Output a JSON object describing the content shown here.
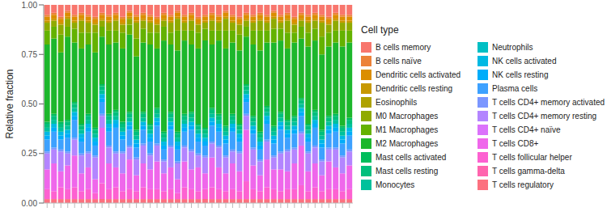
{
  "chart_data": {
    "type": "bar",
    "stacked": true,
    "legend": "right",
    "legend_title": "Cell type",
    "y_label": "Relative fraction",
    "ylim": [
      0,
      1
    ],
    "yticks": [
      {
        "value": 0,
        "label": "0.00"
      },
      {
        "value": 0.25,
        "label": "0.25"
      },
      {
        "value": 0.5,
        "label": "0.50"
      },
      {
        "value": 0.75,
        "label": "0.75"
      },
      {
        "value": 1,
        "label": "1.00"
      }
    ],
    "categories": [
      null,
      null,
      null,
      null,
      null,
      null,
      null,
      null,
      null,
      null,
      null,
      null,
      null,
      null,
      null,
      null,
      null,
      null,
      null,
      null,
      null,
      null,
      null,
      null,
      null,
      null,
      null,
      null,
      null,
      null,
      null,
      null,
      null,
      null,
      null,
      null,
      null,
      null,
      null,
      null,
      null,
      null,
      null,
      null,
      null
    ],
    "series": [
      {
        "name": "B cells memory",
        "color": "#F8766D",
        "values": [
          0.05,
          0.04,
          0.06,
          0.03,
          0.05,
          0.04,
          0.05,
          0.06,
          0.04,
          0.05,
          0.04,
          0.06,
          0.03,
          0.05,
          0.04,
          0.05,
          0.06,
          0.04,
          0.05,
          0.03,
          0.05,
          0.04,
          0.06,
          0.05,
          0.04,
          0.05,
          0.03,
          0.05,
          0.06,
          0.04,
          0.05,
          0.04,
          0.05,
          0.03,
          0.05,
          0.04,
          0.06,
          0.04,
          0.05,
          0.04,
          0.05,
          0.06,
          0.04,
          0.05,
          0.05
        ]
      },
      {
        "name": "B cells naïve",
        "color": "#EC8239",
        "values": [
          0.01,
          0.01,
          0.01,
          0.01,
          0.01,
          0.01,
          0.01,
          0.01,
          0.01,
          0.01,
          0.01,
          0.01,
          0.01,
          0.01,
          0.01,
          0.01,
          0.01,
          0.01,
          0.01,
          0.01,
          0.01,
          0.01,
          0.01,
          0.01,
          0.01,
          0.01,
          0.01,
          0.01,
          0.01,
          0.01,
          0.01,
          0.01,
          0.01,
          0.01,
          0.01,
          0.01,
          0.01,
          0.01,
          0.01,
          0.01,
          0.01,
          0.01,
          0.01,
          0.01,
          0.01
        ]
      },
      {
        "name": "Dendritic cells activated",
        "color": "#DB8E00",
        "values": [
          0.02,
          0.02,
          0.02,
          0.02,
          0.02,
          0.02,
          0.02,
          0.02,
          0.02,
          0.02,
          0.02,
          0.02,
          0.02,
          0.02,
          0.02,
          0.02,
          0.02,
          0.02,
          0.02,
          0.02,
          0.02,
          0.02,
          0.02,
          0.02,
          0.02,
          0.02,
          0.02,
          0.02,
          0.02,
          0.02,
          0.02,
          0.02,
          0.02,
          0.02,
          0.02,
          0.02,
          0.02,
          0.02,
          0.02,
          0.02,
          0.02,
          0.02,
          0.02,
          0.02,
          0.02
        ]
      },
      {
        "name": "Dendritic cells resting",
        "color": "#C79800",
        "values": [
          0.01,
          0.01,
          0.01,
          0.01,
          0.01,
          0.01,
          0.01,
          0.01,
          0.01,
          0.01,
          0.01,
          0.01,
          0.01,
          0.01,
          0.01,
          0.01,
          0.01,
          0.01,
          0.01,
          0.01,
          0.01,
          0.01,
          0.01,
          0.01,
          0.01,
          0.01,
          0.01,
          0.01,
          0.01,
          0.01,
          0.01,
          0.01,
          0.01,
          0.01,
          0.01,
          0.01,
          0.01,
          0.01,
          0.01,
          0.01,
          0.01,
          0.01,
          0.01,
          0.01,
          0.01
        ]
      },
      {
        "name": "Eosinophils",
        "color": "#AEA200",
        "values": [
          0,
          0,
          0,
          0,
          0,
          0,
          0,
          0,
          0,
          0,
          0,
          0,
          0,
          0,
          0,
          0,
          0,
          0,
          0,
          0,
          0,
          0,
          0,
          0,
          0,
          0,
          0,
          0,
          0,
          0,
          0,
          0,
          0,
          0,
          0,
          0,
          0,
          0,
          0,
          0,
          0,
          0,
          0,
          0,
          0
        ]
      },
      {
        "name": "M0 Macrophages",
        "color": "#8FAA00",
        "values": [
          0.04,
          0.03,
          0.05,
          0.04,
          0.03,
          0.06,
          0.05,
          0.04,
          0.03,
          0.04,
          0.05,
          0.04,
          0.03,
          0.08,
          0.04,
          0.05,
          0.04,
          0.03,
          0.05,
          0.06,
          0.04,
          0.05,
          0.04,
          0.03,
          0.05,
          0.04,
          0.06,
          0.04,
          0.05,
          0.03,
          0.04,
          0.05,
          0.04,
          0.05,
          0.03,
          0.06,
          0.04,
          0.03,
          0.05,
          0.04,
          0.07,
          0.04,
          0.05,
          0.04,
          0.04
        ]
      },
      {
        "name": "M1 Macrophages",
        "color": "#64B200",
        "values": [
          0.07,
          0.06,
          0.09,
          0.05,
          0.07,
          0.08,
          0.06,
          0.1,
          0.05,
          0.07,
          0.06,
          0.08,
          0.05,
          0.09,
          0.07,
          0.06,
          0.08,
          0.07,
          0.06,
          0.1,
          0.05,
          0.07,
          0.08,
          0.06,
          0.07,
          0.05,
          0.09,
          0.06,
          0.08,
          0.05,
          0.07,
          0.1,
          0.06,
          0.07,
          0.06,
          0.08,
          0.05,
          0.06,
          0.07,
          0.06,
          0.09,
          0.07,
          0.06,
          0.08,
          0.06
        ]
      },
      {
        "name": "M2 Macrophages",
        "color": "#1DB72C",
        "values": [
          0.39,
          0.38,
          0.35,
          0.42,
          0.3,
          0.38,
          0.35,
          0.38,
          0.24,
          0.35,
          0.34,
          0.37,
          0.39,
          0.37,
          0.35,
          0.4,
          0.3,
          0.46,
          0.34,
          0.41,
          0.37,
          0.34,
          0.38,
          0.44,
          0.32,
          0.37,
          0.39,
          0.36,
          0.37,
          0.24,
          0.36,
          0.41,
          0.32,
          0.42,
          0.36,
          0.36,
          0.37,
          0.3,
          0.39,
          0.35,
          0.38,
          0.35,
          0.36,
          0.4,
          0.38
        ]
      },
      {
        "name": "Mast cells activated",
        "color": "#00BD5C",
        "values": [
          0.01,
          0.01,
          0.01,
          0.01,
          0.01,
          0.01,
          0.01,
          0.01,
          0.01,
          0.01,
          0.01,
          0.01,
          0.01,
          0.01,
          0.01,
          0.01,
          0.01,
          0.01,
          0.01,
          0.01,
          0.01,
          0.01,
          0.01,
          0.01,
          0.01,
          0.01,
          0.01,
          0.01,
          0.01,
          0.01,
          0.01,
          0.01,
          0.01,
          0.01,
          0.01,
          0.01,
          0.01,
          0.01,
          0.01,
          0.01,
          0.01,
          0.01,
          0.01,
          0.01,
          0.01
        ]
      },
      {
        "name": "Mast cells resting",
        "color": "#00BF7D",
        "values": [
          0.02,
          0.02,
          0.02,
          0.02,
          0.02,
          0.02,
          0.02,
          0.02,
          0.02,
          0.02,
          0.02,
          0.02,
          0.02,
          0.02,
          0.02,
          0.02,
          0.02,
          0.02,
          0.02,
          0.02,
          0.02,
          0.02,
          0.02,
          0.02,
          0.02,
          0.02,
          0.02,
          0.02,
          0.02,
          0.02,
          0.02,
          0.02,
          0.02,
          0.02,
          0.02,
          0.02,
          0.02,
          0.02,
          0.02,
          0.02,
          0.02,
          0.02,
          0.02,
          0.02,
          0.02
        ]
      },
      {
        "name": "Monocytes",
        "color": "#00C19C",
        "values": [
          0.02,
          0.02,
          0.02,
          0.02,
          0.02,
          0.02,
          0.02,
          0.02,
          0.02,
          0.02,
          0.02,
          0.02,
          0.02,
          0.02,
          0.02,
          0.02,
          0.02,
          0.02,
          0.02,
          0.02,
          0.02,
          0.02,
          0.02,
          0.02,
          0.02,
          0.02,
          0.02,
          0.02,
          0.02,
          0.02,
          0.02,
          0.02,
          0.02,
          0.02,
          0.02,
          0.02,
          0.02,
          0.02,
          0.02,
          0.02,
          0.02,
          0.02,
          0.02,
          0.02,
          0.02
        ]
      },
      {
        "name": "Neutrophils",
        "color": "#00BFC4",
        "values": [
          0,
          0,
          0,
          0,
          0,
          0,
          0,
          0,
          0,
          0,
          0,
          0,
          0,
          0,
          0,
          0,
          0,
          0,
          0,
          0,
          0,
          0,
          0,
          0,
          0,
          0,
          0,
          0,
          0,
          0,
          0,
          0,
          0,
          0,
          0,
          0,
          0,
          0,
          0,
          0,
          0,
          0,
          0,
          0,
          0
        ]
      },
      {
        "name": "NK cells activated",
        "color": "#00B9E3",
        "values": [
          0.02,
          0.02,
          0.02,
          0.02,
          0.02,
          0.02,
          0.02,
          0.02,
          0.02,
          0.02,
          0.02,
          0.02,
          0.02,
          0.02,
          0.02,
          0.02,
          0.02,
          0.02,
          0.02,
          0.02,
          0.02,
          0.02,
          0.02,
          0.02,
          0.02,
          0.02,
          0.02,
          0.02,
          0.02,
          0.02,
          0.02,
          0.02,
          0.02,
          0.02,
          0.02,
          0.02,
          0.02,
          0.02,
          0.02,
          0.02,
          0.02,
          0.02,
          0.02,
          0.02,
          0.02
        ]
      },
      {
        "name": "NK cells resting",
        "color": "#00ADFA",
        "values": [
          0.02,
          0.02,
          0.02,
          0.02,
          0.02,
          0.02,
          0.02,
          0.02,
          0.02,
          0.02,
          0.02,
          0.02,
          0.02,
          0.02,
          0.02,
          0.02,
          0.02,
          0.02,
          0.02,
          0.02,
          0.02,
          0.02,
          0.02,
          0.02,
          0.02,
          0.02,
          0.02,
          0.02,
          0.02,
          0.02,
          0.02,
          0.02,
          0.02,
          0.02,
          0.02,
          0.02,
          0.02,
          0.02,
          0.02,
          0.02,
          0.02,
          0.02,
          0.02,
          0.02,
          0.02
        ]
      },
      {
        "name": "Plasma cells",
        "color": "#3DA1FF",
        "values": [
          0.06,
          0.08,
          0.05,
          0.07,
          0.09,
          0.06,
          0.1,
          0.05,
          0.06,
          0.07,
          0.12,
          0.06,
          0.08,
          0.05,
          0.07,
          0.06,
          0.09,
          0.05,
          0.08,
          0.06,
          0.07,
          0.1,
          0.06,
          0.05,
          0.08,
          0.07,
          0.06,
          0.09,
          0.05,
          0.06,
          0.07,
          0.05,
          0.08,
          0.06,
          0.11,
          0.06,
          0.07,
          0.08,
          0.05,
          0.09,
          0.06,
          0.07,
          0.08,
          0.06,
          0.07
        ]
      },
      {
        "name": "T cells CD4+ memory activated",
        "color": "#7B96FF",
        "values": [
          0.01,
          0.01,
          0.01,
          0.01,
          0.01,
          0.01,
          0.01,
          0.01,
          0.01,
          0.01,
          0.01,
          0.01,
          0.01,
          0.01,
          0.01,
          0.01,
          0.01,
          0.01,
          0.01,
          0.01,
          0.01,
          0.01,
          0.01,
          0.01,
          0.01,
          0.01,
          0.01,
          0.01,
          0.01,
          0.01,
          0.01,
          0.01,
          0.01,
          0.01,
          0.01,
          0.01,
          0.01,
          0.01,
          0.01,
          0.01,
          0.01,
          0.01,
          0.01,
          0.01,
          0.01
        ]
      },
      {
        "name": "T cells CD4+ memory resting",
        "color": "#B385FF",
        "values": [
          0.08,
          0.07,
          0.1,
          0.06,
          0.08,
          0.09,
          0.07,
          0.11,
          0.06,
          0.08,
          0.07,
          0.1,
          0.06,
          0.08,
          0.09,
          0.07,
          0.08,
          0.06,
          0.1,
          0.08,
          0.07,
          0.09,
          0.06,
          0.08,
          0.07,
          0.1,
          0.08,
          0.06,
          0.09,
          0.07,
          0.08,
          0.07,
          0.09,
          0.06,
          0.08,
          0.1,
          0.07,
          0.06,
          0.09,
          0.08,
          0.07,
          0.06,
          0.09,
          0.08,
          0.07
        ]
      },
      {
        "name": "T cells CD4+ naïve",
        "color": "#DB72FB",
        "values": [
          0,
          0,
          0,
          0,
          0,
          0,
          0,
          0,
          0,
          0,
          0,
          0,
          0,
          0,
          0,
          0,
          0,
          0,
          0,
          0,
          0,
          0,
          0,
          0,
          0,
          0,
          0,
          0,
          0,
          0,
          0,
          0,
          0,
          0,
          0,
          0,
          0,
          0,
          0,
          0,
          0,
          0,
          0,
          0,
          0
        ]
      },
      {
        "name": "T cells CD8+",
        "color": "#EF67EB",
        "values": [
          0.1,
          0.14,
          0.08,
          0.12,
          0.16,
          0.09,
          0.11,
          0.07,
          0.28,
          0.13,
          0.1,
          0.09,
          0.15,
          0.08,
          0.12,
          0.1,
          0.14,
          0.09,
          0.11,
          0.07,
          0.13,
          0.1,
          0.12,
          0.08,
          0.15,
          0.11,
          0.09,
          0.13,
          0.1,
          0.26,
          0.12,
          0.08,
          0.14,
          0.1,
          0.11,
          0.09,
          0.13,
          0.2,
          0.1,
          0.12,
          0.08,
          0.14,
          0.11,
          0.09,
          0.12
        ]
      },
      {
        "name": "T cells follicular helper",
        "color": "#FD61D1",
        "values": [
          0.05,
          0.04,
          0.06,
          0.05,
          0.06,
          0.04,
          0.05,
          0.03,
          0.08,
          0.05,
          0.06,
          0.04,
          0.05,
          0.04,
          0.06,
          0.05,
          0.05,
          0.04,
          0.05,
          0.03,
          0.06,
          0.05,
          0.04,
          0.05,
          0.06,
          0.05,
          0.04,
          0.05,
          0.04,
          0.09,
          0.05,
          0.04,
          0.06,
          0.05,
          0.04,
          0.05,
          0.05,
          0.07,
          0.04,
          0.06,
          0.04,
          0.05,
          0.05,
          0.04,
          0.05
        ]
      },
      {
        "name": "T cells gamma-delta",
        "color": "#FF65AE",
        "values": [
          0,
          0,
          0,
          0,
          0,
          0,
          0,
          0,
          0,
          0,
          0,
          0,
          0,
          0,
          0,
          0,
          0,
          0,
          0,
          0,
          0,
          0,
          0,
          0,
          0,
          0,
          0,
          0,
          0,
          0,
          0,
          0,
          0,
          0,
          0,
          0,
          0,
          0,
          0,
          0,
          0,
          0,
          0,
          0,
          0
        ]
      },
      {
        "name": "T cells regulatory",
        "color": "#FC717F",
        "values": [
          0.02,
          0.02,
          0.02,
          0.02,
          0.02,
          0.02,
          0.02,
          0.02,
          0.02,
          0.02,
          0.02,
          0.02,
          0.02,
          0.02,
          0.02,
          0.02,
          0.02,
          0.02,
          0.02,
          0.02,
          0.02,
          0.02,
          0.02,
          0.02,
          0.02,
          0.02,
          0.02,
          0.02,
          0.02,
          0.02,
          0.02,
          0.02,
          0.02,
          0.02,
          0.02,
          0.02,
          0.02,
          0.02,
          0.02,
          0.02,
          0.02,
          0.02,
          0.02,
          0.02,
          0.02
        ]
      }
    ]
  }
}
